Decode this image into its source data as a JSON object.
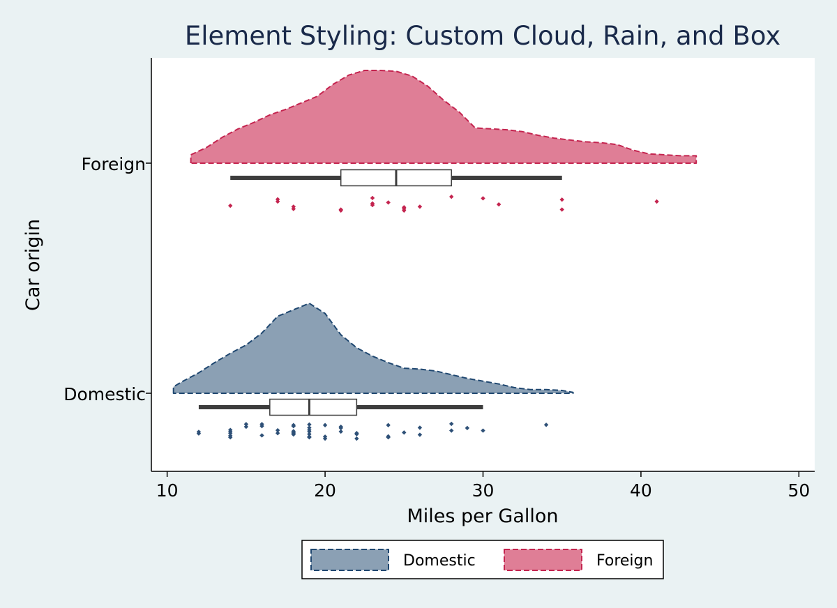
{
  "chart_data": {
    "type": "raincloud",
    "title": "Element Styling: Custom Cloud, Rain, and Box",
    "xlabel": "Miles per Gallon",
    "ylabel": "Car origin",
    "xlim": [
      9,
      51
    ],
    "xticks": [
      10,
      20,
      30,
      40,
      50
    ],
    "categories": [
      "Foreign",
      "Domestic"
    ],
    "legend": {
      "position": "bottom",
      "entries": [
        "Domestic",
        "Foreign"
      ]
    },
    "series": [
      {
        "name": "Foreign",
        "fill_color": "#df7e96",
        "line_color": "#c4244f",
        "point_color": "#c4244f",
        "density": {
          "x": [
            11.5,
            12.5,
            13.5,
            14.5,
            15.5,
            16.5,
            17.5,
            18.5,
            19.5,
            20.5,
            21.5,
            22.5,
            23.5,
            24.5,
            25.5,
            26.5,
            27.5,
            28.5,
            29.5,
            30.5,
            31.5,
            32.5,
            33.5,
            34.5,
            35.5,
            36.5,
            37.5,
            38.5,
            39.5,
            40.5,
            41.5,
            42.5,
            43.5
          ],
          "height": [
            0.09,
            0.17,
            0.28,
            0.37,
            0.44,
            0.52,
            0.58,
            0.65,
            0.72,
            0.85,
            0.95,
            1.0,
            1.0,
            0.99,
            0.94,
            0.83,
            0.68,
            0.55,
            0.38,
            0.37,
            0.36,
            0.34,
            0.3,
            0.27,
            0.25,
            0.23,
            0.22,
            0.2,
            0.14,
            0.1,
            0.09,
            0.08,
            0.08
          ]
        },
        "box": {
          "whisker_low": 14,
          "q1": 21,
          "median": 24.5,
          "q3": 28,
          "whisker_high": 35
        },
        "points": [
          {
            "x": 14,
            "y": 0.26
          },
          {
            "x": 17,
            "y": 0.66
          },
          {
            "x": 17,
            "y": 0.52
          },
          {
            "x": 18,
            "y": 0.2
          },
          {
            "x": 18,
            "y": 0.06
          },
          {
            "x": 21,
            "y": 0.02
          },
          {
            "x": 21,
            "y": -0.04
          },
          {
            "x": 23,
            "y": 0.74
          },
          {
            "x": 23,
            "y": 0.4
          },
          {
            "x": 23,
            "y": 0.3
          },
          {
            "x": 24,
            "y": 0.46
          },
          {
            "x": 25,
            "y": 0.16
          },
          {
            "x": 25,
            "y": 0.06
          },
          {
            "x": 25,
            "y": -0.04
          },
          {
            "x": 26,
            "y": 0.2
          },
          {
            "x": 28,
            "y": 0.82
          },
          {
            "x": 30,
            "y": 0.72
          },
          {
            "x": 31,
            "y": 0.34
          },
          {
            "x": 35,
            "y": 0.64
          },
          {
            "x": 35,
            "y": 0.02
          },
          {
            "x": 41,
            "y": 0.52
          }
        ]
      },
      {
        "name": "Domestic",
        "fill_color": "#8ba0b4",
        "line_color": "#1f4770",
        "point_color": "#2e5077",
        "density": {
          "x": [
            10.4,
            11,
            12,
            13,
            14,
            15,
            16,
            17,
            18,
            19,
            20,
            21,
            22,
            23,
            24,
            25,
            26,
            27,
            28,
            29,
            30,
            31,
            32,
            33,
            34,
            35,
            35.7
          ],
          "height": [
            0.07,
            0.13,
            0.22,
            0.33,
            0.43,
            0.52,
            0.65,
            0.83,
            0.9,
            0.97,
            0.86,
            0.63,
            0.49,
            0.4,
            0.33,
            0.27,
            0.26,
            0.24,
            0.2,
            0.16,
            0.13,
            0.1,
            0.06,
            0.04,
            0.04,
            0.03,
            0.01
          ]
        },
        "box": {
          "whisker_low": 12,
          "q1": 16.5,
          "median": 19,
          "q3": 22,
          "whisker_high": 30
        },
        "points": [
          {
            "x": 12,
            "y": 0.2
          },
          {
            "x": 12,
            "y": 0.1
          },
          {
            "x": 14,
            "y": 0.32
          },
          {
            "x": 14,
            "y": 0.22
          },
          {
            "x": 14,
            "y": 0.12
          },
          {
            "x": 14,
            "y": -0.04
          },
          {
            "x": 14,
            "y": -0.14
          },
          {
            "x": 15,
            "y": 0.68
          },
          {
            "x": 15,
            "y": 0.52
          },
          {
            "x": 16,
            "y": 0.68
          },
          {
            "x": 16,
            "y": 0.56
          },
          {
            "x": 16,
            "y": -0.02
          },
          {
            "x": 17,
            "y": 0.3
          },
          {
            "x": 17,
            "y": 0.12
          },
          {
            "x": 18,
            "y": 0.62
          },
          {
            "x": 18,
            "y": 0.56
          },
          {
            "x": 18,
            "y": 0.24
          },
          {
            "x": 18,
            "y": 0.16
          },
          {
            "x": 18,
            "y": 0.1
          },
          {
            "x": 18,
            "y": 0.04
          },
          {
            "x": 19,
            "y": 0.66
          },
          {
            "x": 19,
            "y": 0.46
          },
          {
            "x": 19,
            "y": 0.32
          },
          {
            "x": 19,
            "y": 0.22
          },
          {
            "x": 19,
            "y": 0.06
          },
          {
            "x": 19,
            "y": -0.1
          },
          {
            "x": 19,
            "y": -0.14
          },
          {
            "x": 20,
            "y": 0.62
          },
          {
            "x": 20,
            "y": -0.1
          },
          {
            "x": 20,
            "y": -0.22
          },
          {
            "x": 21,
            "y": 0.52
          },
          {
            "x": 21,
            "y": 0.44
          },
          {
            "x": 21,
            "y": 0.22
          },
          {
            "x": 22,
            "y": 0.12
          },
          {
            "x": 22,
            "y": 0.06
          },
          {
            "x": 22,
            "y": -0.22
          },
          {
            "x": 24,
            "y": 0.62
          },
          {
            "x": 24,
            "y": -0.08
          },
          {
            "x": 24,
            "y": -0.14
          },
          {
            "x": 25,
            "y": 0.16
          },
          {
            "x": 26,
            "y": 0.46
          },
          {
            "x": 26,
            "y": 0.02
          },
          {
            "x": 28,
            "y": 0.7
          },
          {
            "x": 28,
            "y": 0.28
          },
          {
            "x": 29,
            "y": 0.44
          },
          {
            "x": 30,
            "y": 0.28
          },
          {
            "x": 34,
            "y": 0.64
          }
        ]
      }
    ]
  }
}
